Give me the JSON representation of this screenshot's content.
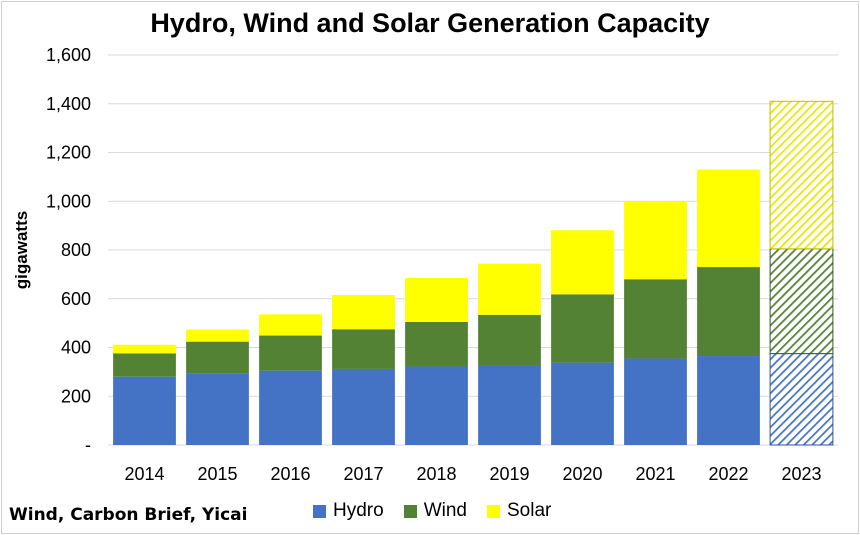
{
  "chart_data": {
    "type": "bar",
    "stacked": true,
    "title": "Hydro, Wind and Solar Generation Capacity",
    "ylabel": "gigawatts",
    "xlabel": "",
    "ylim": [
      0,
      1600
    ],
    "yticks": [
      0,
      200,
      400,
      600,
      800,
      1000,
      1200,
      1400,
      1600
    ],
    "ytick_labels": [
      "-",
      "200",
      "400",
      "600",
      "800",
      "1,000",
      "1,200",
      "1,400",
      "1,600"
    ],
    "categories": [
      "2014",
      "2015",
      "2016",
      "2017",
      "2018",
      "2019",
      "2020",
      "2021",
      "2022",
      "2023"
    ],
    "series": [
      {
        "name": "Hydro",
        "color": "#4472C4",
        "values": [
          280,
          295,
          305,
          312,
          322,
          326,
          338,
          355,
          365,
          375
        ]
      },
      {
        "name": "Wind",
        "color": "#548235",
        "values": [
          96,
          129,
          144,
          163,
          183,
          208,
          280,
          325,
          365,
          430
        ]
      },
      {
        "name": "Solar",
        "color": "#FFFF00",
        "values": [
          35,
          50,
          87,
          140,
          180,
          210,
          263,
          320,
          400,
          605
        ]
      }
    ],
    "hatched_categories": [
      "2023"
    ],
    "grid": true,
    "legend_position": "bottom",
    "source": "Wind, Carbon Brief, Yicai"
  }
}
